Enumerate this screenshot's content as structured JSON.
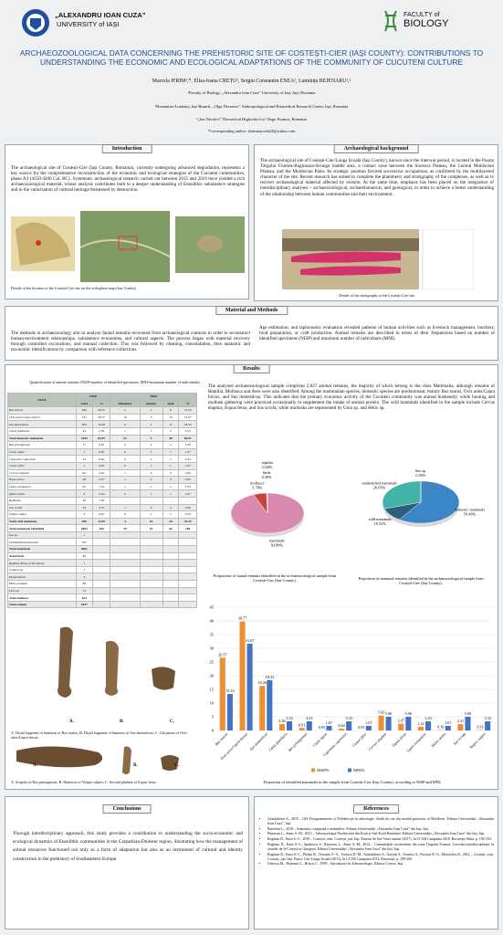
{
  "header": {
    "university_line1": "„ALEXANDRU IOAN CUZA”",
    "university_line2": "UNIVERSITY of IAȘI",
    "faculty_line1": "FACULTY of",
    "faculty_line2": "BIOLOGY",
    "title": "ARCHAEOZOOLOGICAL DATA CONCERNING THE PREHISTORIC SITE OF COSTEȘTI-CIER (IAȘI COUNTY): CONTRIBUTIONS TO UNDERSTANDING THE ECONOMIC AND ECOLOGICAL ADAPTATIONS OF THE COMMUNITY OF CUCUTENI CULTURE",
    "authors": "Marcela IFRIM¹,*, Elisa-Ioana CREȚU¹, Sergiu Constantin ENEA¹, Luminița BEJENARU¹,²",
    "affiliations": [
      "¹Faculty of Biology, „Alexandru Ioan Cuza” University of Iași, Iași, Romania",
      "²Romanian Academy, Iași Branch, „Olga Necrasov” Anthropological and Biomedical Research Center, Iași, Romania",
      "³„Ion Neculce” Theoretical Highschool of Târgu Frumos, Romania",
      "*Corresponding author: ifrimmarcela23@yahoo.com"
    ]
  },
  "introduction": {
    "heading": "Introduction",
    "text": "The archaeological site of Costești-Cier (Iași County, Romania), currently undergoing advanced degradation, represents a key source for the comprehensive reconstruction of the economic and ecological strategies of the Cucuteni communities, phase A3 (4350-4200 Cal. BC). Systematic archaeological research carried out between 2015 and 2019 have yielded a rich archaeozoological material, whose analysis contributes both to a deeper understanding of Eneolithic subsistence strategies and to the valorization of cultural heritage threatened by destruction.",
    "caption": "Details of the location of the Costești-Cier site on the orthophoto map (Iași County)."
  },
  "background": {
    "heading": "Archaeological background",
    "text": "The archaeological site of Costești-Cier/Lunga Școală (Iași County), known since the interwar period, is located in the Poarta Târgului Frumos-Ruginoasa-Strunga Saddle area, a contact zone between the Suceava Plateau, the Central Moldavian Plateau, and the Moldavian Plain. Its strategic position favored successive occupations, as confirmed by the multilayered character of the site. Recent research has aimed to complete the planimetry and stratigraphy of the complexes, as well as to recover archaeological material affected by erosion. At the same time, emphasis has been placed on the integration of interdisciplinary analyses – archaeozoological, archaeobotanical, and geological, in order to achieve a better understanding of the relationship between human communities and their environment.",
    "caption": "Details of the stratigraphy of the Costești-Cier site."
  },
  "methods": {
    "heading": "Material and Methods",
    "text": [
      "The methods in archaeozoology aim to analyze faunal remains recovered from archaeological contexts in order to reconstruct human-environment relationships, subsistence economies, and cultural aspects. The process began with material recovery through controlled excavations, and manual collection. This was followed by cleaning, consolidation, then anatomic and taxonomic identifications by comparison with reference collections.",
      "Age estimation, and taphonomic evaluation revealed patterns of human activities such as livestock management, butchery, food preparation, or craft production. Animal remains are described in terms of their frequencies based on number of identified specimens (NISP) and minimum number of individuals (MNI)."
    ]
  },
  "results": {
    "heading": "Results",
    "text": "The analysed archaeozoological sample comprises 2,837 animal remains, the majority of which belong to the class Mammalia, although remains of Reptilia, Mollusca and Aves were also identified. Among the mammalian species, domestic species are predominant, mainly Bos taurus, Ovis aries/Capra hircus, and Sus domesticus. This indicates that the primary economic activity of the Cucuteni community was animal husbandry, while hunting and mollusk gathering were practiced occasionally to supplement the intake of animal protein. The wild mammals identified in the sample include Cervus elaphus, Equus ferus, and Sus scrofa, while mollusks are represented by Unio sp. and Helix sp.",
    "table": {
      "caption": "Quantification of animal remains (NISP=number of identified specimens, MNI=minimum number of individuals).",
      "header_top": [
        "TAXA",
        "NISP",
        "MNI"
      ],
      "header_sub": [
        "total",
        "%",
        "immature",
        "mature",
        "total",
        "%"
      ],
      "rows": [
        [
          "Bos taurus",
          "495",
          "26.57",
          "5",
          "3",
          "8",
          "13.33"
        ],
        [
          "Ovis aries/Capra hircus",
          "741",
          "39.77",
          "16",
          "3",
          "19",
          "31.67"
        ],
        [
          "Sus domesticus",
          "303",
          "16.26",
          "9",
          "2",
          "11",
          "18.33"
        ],
        [
          "Canis familiaris",
          "44",
          "2.36",
          "1",
          "1",
          "2",
          "3.33"
        ],
        [
          "Total domestic mammals",
          "1583",
          "84.97",
          "31",
          "9",
          "40",
          "66.67"
        ],
        [
          "Bos primigenius",
          "17",
          "0.91",
          "0",
          "2",
          "2",
          "3.33"
        ],
        [
          "Canis lupus",
          "1",
          "0.05",
          "0",
          "1",
          "1",
          "1.67"
        ],
        [
          "Capreolus capreolus",
          "12",
          "0.64",
          "0",
          "2",
          "2",
          "3.33"
        ],
        [
          "Castor fiber",
          "1",
          "0.05",
          "0",
          "1",
          "1",
          "1.67"
        ],
        [
          "Cervus elaphus",
          "101",
          "5.42",
          "1",
          "2",
          "3",
          "5.00"
        ],
        [
          "Equus ferus",
          "46",
          "2.47",
          "1",
          "2",
          "3",
          "5.00"
        ],
        [
          "Lepus europaeus",
          "25",
          "1.34",
          "1",
          "1",
          "2",
          "3.33"
        ],
        [
          "Meles meles",
          "3",
          "0.16",
          "0",
          "1",
          "1",
          "1.67"
        ],
        [
          "Rodentia",
          "28",
          "1.50",
          "-",
          "-",
          "-",
          "-"
        ],
        [
          "Sus scrofa",
          "43",
          "2.31",
          "1",
          "2",
          "3",
          "5.00"
        ],
        [
          "Vulpes vulpes",
          "3",
          "0.16",
          "0",
          "2",
          "2",
          "3.33"
        ],
        [
          "Total wild mammals",
          "280",
          "15.03",
          "4",
          "16",
          "20",
          "33.33"
        ],
        [
          "Total mammals identified",
          "1863",
          "100",
          "35",
          "25",
          "60",
          "100"
        ],
        [
          "Sus sp.",
          "1"
        ],
        [
          "Unidentified mammals",
          "797"
        ],
        [
          "Total mammals",
          "2661"
        ],
        [
          "Total birds",
          "11"
        ],
        [
          "Reptilia (Emys orbicularis)",
          "1"
        ],
        [
          "Cepaea sp.",
          "1"
        ],
        [
          "Planorbarius",
          "2"
        ],
        [
          "Helix pomatia",
          "89"
        ],
        [
          "Unio sp.",
          "72"
        ],
        [
          "Total molluscs",
          "164"
        ],
        [
          "Total sample",
          "2837"
        ]
      ]
    },
    "figures": [
      {
        "labels": [
          "A.",
          "B.",
          "C."
        ],
        "caption": "A. Distal fragment of humerus of Bos taurus; B. Distal fragment of humerus of Sus domesticus; C. Calcaneus of Ovis aries/Capra hircus."
      },
      {
        "labels": [
          "A.",
          "B.",
          "C."
        ],
        "caption": "A. Scapula of Bos primigenius; B. Humerus of Vulpes vulpes; C. Second phalanx of Equus ferus."
      }
    ]
  },
  "chart_data": [
    {
      "type": "pie",
      "title": "Proportions of faunal remains identified in the archaeozoological sample from Costești-Cier (Iași County).",
      "categories": [
        "mammals",
        "molluscs",
        "birds",
        "reptiles"
      ],
      "values": [
        93.8,
        5.78,
        0.39,
        0.04
      ],
      "value_labels": [
        "93.80%",
        "5.78%",
        "0.39%",
        "0.04%"
      ],
      "colors": [
        "#d98aae",
        "#c8433c",
        "#f0a868",
        "#e9c6d6"
      ]
    },
    {
      "type": "pie",
      "title": "Proportion of mammal remains identified in the archaeozoological sample from Costești-Cier (Iași County).",
      "categories": [
        "domestic mammals",
        "wild mammals",
        "unidentified mammals",
        "Sus sp."
      ],
      "values": [
        59.49,
        10.52,
        29.95,
        0.05
      ],
      "value_labels": [
        "59.49%",
        "10.52%",
        "29.95%",
        "0.05%"
      ],
      "colors": [
        "#3c86c6",
        "#2f5f7f",
        "#42b3a6",
        "#1e4c5a"
      ]
    },
    {
      "type": "bar",
      "title": "Proportion of identified mammals in the sample from Costești-Cier (Iași County), according to NISP and MNI.",
      "categories": [
        "Bos taurus",
        "Ovis aries/Capra hircus",
        "Sus domesticus",
        "Canis familiaris",
        "Bos primigenius",
        "Canis lupus",
        "Capreolus capreolus",
        "Castor fiber",
        "Cervus elaphus",
        "Equus ferus",
        "Lepus europaeus",
        "Meles meles",
        "Sus scrofa",
        "Vulpes vulpes"
      ],
      "series": [
        {
          "name": "NISP%",
          "color": "#ef8f34",
          "values": [
            26.57,
            39.77,
            16.26,
            2.36,
            0.91,
            0.05,
            0.64,
            0.05,
            5.42,
            2.47,
            1.34,
            0.16,
            2.31,
            0.16
          ],
          "value_labels": [
            "26.57",
            "39.77",
            "16.26",
            "2.36",
            "0.91",
            "0.05",
            "0.64",
            "0.05",
            "5.42",
            "2.47",
            "1.34",
            "0.16",
            "2.31",
            "0.16"
          ]
        },
        {
          "name": "MNI%",
          "color": "#4472c4",
          "values": [
            13.33,
            31.67,
            18.33,
            3.33,
            3.33,
            1.67,
            3.33,
            1.67,
            5.0,
            5.0,
            3.33,
            1.67,
            5.0,
            3.33
          ],
          "value_labels": [
            "13.33",
            "31.67",
            "18.33",
            "3.33",
            "3.33",
            "1.67",
            "3.33",
            "1.67",
            "5.00",
            "5.00",
            "3.33",
            "1.67",
            "5.00",
            "3.33"
          ]
        }
      ],
      "ylim": [
        0,
        45
      ],
      "yticks": [
        0,
        5,
        10,
        15,
        20,
        25,
        30,
        35,
        40,
        45
      ],
      "grid": true,
      "legend": "bottom"
    }
  ],
  "conclusions": {
    "heading": "Conclusions",
    "text": "Through interdisciplinary approach, this study provides a contribution to understanding the socio-economic and ecological dynamics of Eneolithic communities in the Carpathian-Dniester region, illustrating how the management of animal resources functioned not only as a form of adaptation but also as an instrument of cultural and identity construction in the prehistory of Southeastern Europe."
  },
  "references": {
    "heading": "References",
    "items": [
      "Asăndulesei A., 2015 – GIS Fotogrammetrie și Teledetecție în arheologie. Studii de caz din mediul preistoric al Moldovei. Editura Universității „Alexandru Ioan Cuza”, Iași.",
      "Bejenaru L., 2010 – Anatomia comparată a animalelor. Editura Universității „Alexandru Ioan Cuza” din Iași, Iași.",
      "Bejenaru L., Stanc S.-M., 2013 – Arheozoologia Neoliticului din Estul și Sud-Estul României. Editura Universității „Alexandru Ioan Cuza” din Iași, Iași.",
      "Boghian D., Enea S.-C., 2019 – Costești, com. Costești, jud. Iași. Punctul de Sus-Vatra satului (2017), în CCAR Campania 2018, București-Sibiu, p. 192-193.",
      "Boghian D., Enea S.-C., Ignătescu S., Bejenaru L., Stanc S.-M., 2014 – Comunitățile cucuteniene din zona Târgului Frumos. Cercetări interdisciplinare în situriile de la Costești și Giurgești. Editura Universității „Alexandru Ioan Cuza” din Iași, Iași.",
      "Boghian D., Enea S.-C., Pîrnău R., Tencariu F.-A., Vornicu D.-M., Asăndulesei A., Garvăn S., Vornicu A., Furnică R.-G., Mototoleu R., 2012 – Costești, com. Costești, jud. Iași. Punct: Cier-Lunga Școală (2011), în CCAR Campania 2012, București, p. 199-200.",
      "Udrescu M., Bejenaru L., Hrișcu C., 1999 – Introducere în Arheozoologie. Editura Corson, Iași."
    ]
  }
}
